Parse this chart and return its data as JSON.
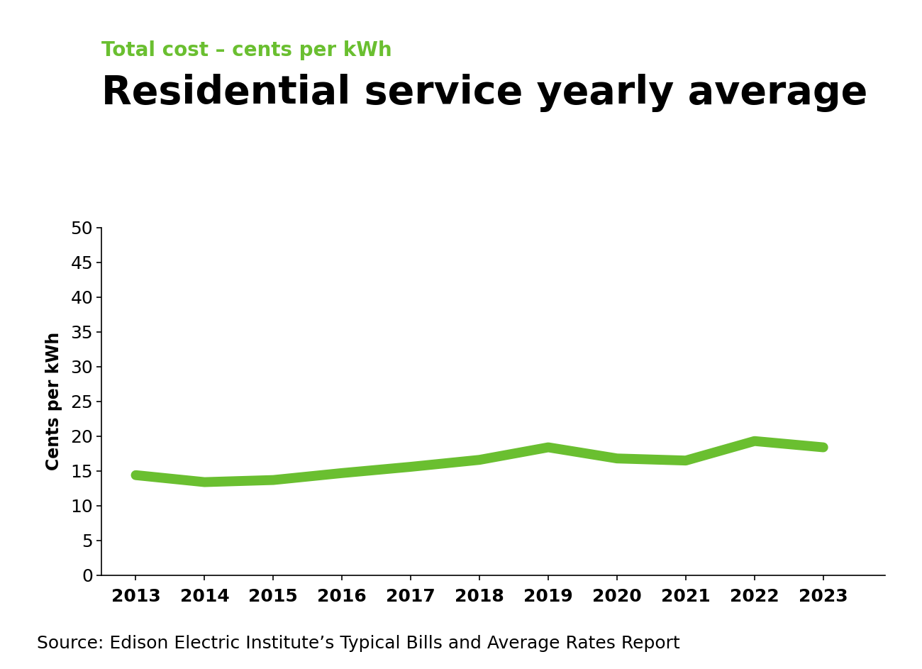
{
  "subtitle": "Total cost – cents per kWh",
  "title": "Residential service yearly average",
  "ylabel": "Cents per kWh",
  "source": "Source: Edison Electric Institute’s Typical Bills and Average Rates Report",
  "years": [
    2013,
    2014,
    2015,
    2016,
    2017,
    2018,
    2019,
    2020,
    2021,
    2022,
    2023
  ],
  "values": [
    14.4,
    13.4,
    13.7,
    14.7,
    15.6,
    16.6,
    18.4,
    16.8,
    16.5,
    19.3,
    18.4
  ],
  "ylim": [
    0,
    50
  ],
  "yticks": [
    0,
    5,
    10,
    15,
    20,
    25,
    30,
    35,
    40,
    45,
    50
  ],
  "line_color": "#6abf30",
  "line_width": 10,
  "subtitle_color": "#6abf30",
  "title_color": "#000000",
  "source_color": "#000000",
  "background_color": "#ffffff",
  "subtitle_fontsize": 20,
  "title_fontsize": 40,
  "source_fontsize": 18,
  "ylabel_fontsize": 17,
  "tick_fontsize": 18
}
